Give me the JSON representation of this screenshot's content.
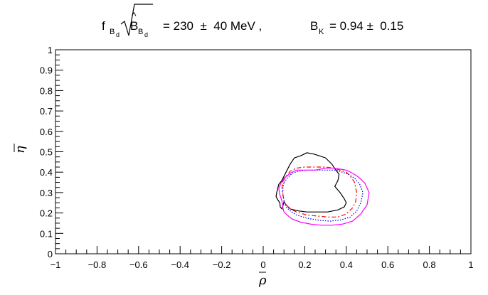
{
  "chart_data": {
    "type": "line",
    "title": {
      "f": "f",
      "f_sub": "B",
      "f_subsub": "d",
      "b_hat": "B",
      "b_sub": "B",
      "b_subsub": "d",
      "value_text": "= 230  ±  40 MeV ,",
      "bk_label": "B",
      "bk_sub": "K",
      "bk_value_text": "= 0.94 ±  0.15"
    },
    "xlabel": "ρ",
    "ylabel": "η",
    "xlim": [
      -1,
      1
    ],
    "ylim": [
      0,
      1
    ],
    "x_tick_labels": [
      "−1",
      "−0.8",
      "−0.6",
      "−0.4",
      "−0.2",
      "0",
      "0.2",
      "0.4",
      "0.6",
      "0.8",
      "1"
    ],
    "y_tick_labels": [
      "0",
      "0.1",
      "0.2",
      "0.3",
      "0.4",
      "0.5",
      "0.6",
      "0.7",
      "0.8",
      "0.9",
      "1"
    ],
    "grid": false,
    "series": [
      {
        "style": "solid",
        "color": "#000000",
        "points": [
          [
            0.09,
            0.36
          ],
          [
            0.11,
            0.4
          ],
          [
            0.13,
            0.44
          ],
          [
            0.15,
            0.47
          ],
          [
            0.18,
            0.48
          ],
          [
            0.21,
            0.495
          ],
          [
            0.24,
            0.49
          ],
          [
            0.27,
            0.48
          ],
          [
            0.3,
            0.47
          ],
          [
            0.33,
            0.44
          ],
          [
            0.35,
            0.41
          ],
          [
            0.365,
            0.39
          ],
          [
            0.36,
            0.36
          ],
          [
            0.345,
            0.33
          ],
          [
            0.37,
            0.3
          ],
          [
            0.39,
            0.27
          ],
          [
            0.4,
            0.25
          ],
          [
            0.39,
            0.23
          ],
          [
            0.36,
            0.215
          ],
          [
            0.31,
            0.205
          ],
          [
            0.26,
            0.205
          ],
          [
            0.21,
            0.205
          ],
          [
            0.17,
            0.21
          ],
          [
            0.13,
            0.22
          ],
          [
            0.11,
            0.24
          ],
          [
            0.1,
            0.255
          ],
          [
            0.095,
            0.235
          ],
          [
            0.09,
            0.22
          ],
          [
            0.082,
            0.23
          ],
          [
            0.08,
            0.25
          ],
          [
            0.07,
            0.265
          ],
          [
            0.062,
            0.28
          ],
          [
            0.065,
            0.3
          ],
          [
            0.07,
            0.32
          ],
          [
            0.075,
            0.34
          ],
          [
            0.09,
            0.36
          ]
        ]
      },
      {
        "style": "dashed",
        "color": "#ff0000",
        "points": [
          [
            0.095,
            0.355
          ],
          [
            0.11,
            0.38
          ],
          [
            0.13,
            0.405
          ],
          [
            0.16,
            0.42
          ],
          [
            0.2,
            0.425
          ],
          [
            0.25,
            0.425
          ],
          [
            0.3,
            0.425
          ],
          [
            0.34,
            0.42
          ],
          [
            0.37,
            0.41
          ],
          [
            0.4,
            0.4
          ],
          [
            0.42,
            0.38
          ],
          [
            0.44,
            0.35
          ],
          [
            0.45,
            0.3
          ],
          [
            0.445,
            0.255
          ],
          [
            0.43,
            0.225
          ],
          [
            0.4,
            0.195
          ],
          [
            0.36,
            0.18
          ],
          [
            0.31,
            0.18
          ],
          [
            0.26,
            0.185
          ],
          [
            0.21,
            0.19
          ],
          [
            0.16,
            0.205
          ],
          [
            0.13,
            0.22
          ],
          [
            0.11,
            0.24
          ],
          [
            0.1,
            0.26
          ],
          [
            0.095,
            0.29
          ],
          [
            0.09,
            0.32
          ],
          [
            0.095,
            0.355
          ]
        ]
      },
      {
        "style": "dotted",
        "color": "#0000ff",
        "points": [
          [
            0.1,
            0.35
          ],
          [
            0.12,
            0.375
          ],
          [
            0.14,
            0.395
          ],
          [
            0.17,
            0.405
          ],
          [
            0.21,
            0.41
          ],
          [
            0.26,
            0.41
          ],
          [
            0.31,
            0.41
          ],
          [
            0.35,
            0.41
          ],
          [
            0.38,
            0.4
          ],
          [
            0.41,
            0.39
          ],
          [
            0.44,
            0.37
          ],
          [
            0.465,
            0.34
          ],
          [
            0.48,
            0.3
          ],
          [
            0.47,
            0.25
          ],
          [
            0.45,
            0.21
          ],
          [
            0.42,
            0.18
          ],
          [
            0.37,
            0.165
          ],
          [
            0.32,
            0.16
          ],
          [
            0.26,
            0.165
          ],
          [
            0.21,
            0.175
          ],
          [
            0.16,
            0.19
          ],
          [
            0.13,
            0.21
          ],
          [
            0.11,
            0.23
          ],
          [
            0.1,
            0.26
          ],
          [
            0.095,
            0.29
          ],
          [
            0.095,
            0.32
          ],
          [
            0.1,
            0.35
          ]
        ]
      },
      {
        "style": "solid",
        "color": "#ff00ff",
        "points": [
          [
            0.085,
            0.345
          ],
          [
            0.1,
            0.37
          ],
          [
            0.13,
            0.395
          ],
          [
            0.16,
            0.41
          ],
          [
            0.2,
            0.41
          ],
          [
            0.25,
            0.41
          ],
          [
            0.3,
            0.42
          ],
          [
            0.34,
            0.42
          ],
          [
            0.37,
            0.415
          ],
          [
            0.4,
            0.41
          ],
          [
            0.43,
            0.395
          ],
          [
            0.46,
            0.375
          ],
          [
            0.49,
            0.345
          ],
          [
            0.51,
            0.3
          ],
          [
            0.5,
            0.24
          ],
          [
            0.47,
            0.195
          ],
          [
            0.43,
            0.16
          ],
          [
            0.38,
            0.145
          ],
          [
            0.33,
            0.14
          ],
          [
            0.28,
            0.14
          ],
          [
            0.23,
            0.145
          ],
          [
            0.18,
            0.155
          ],
          [
            0.14,
            0.17
          ],
          [
            0.115,
            0.19
          ],
          [
            0.1,
            0.205
          ],
          [
            0.095,
            0.225
          ],
          [
            0.09,
            0.26
          ],
          [
            0.08,
            0.29
          ],
          [
            0.075,
            0.32
          ],
          [
            0.085,
            0.345
          ]
        ]
      }
    ]
  }
}
